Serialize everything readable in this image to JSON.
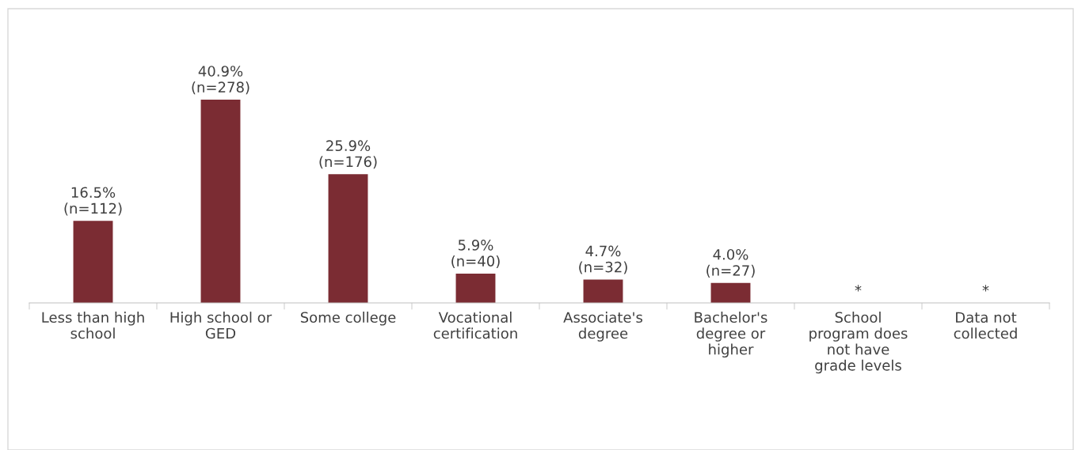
{
  "chart_data": {
    "type": "bar",
    "categories": [
      "Less than high\nschool",
      "High school or\nGED",
      "Some college",
      "Vocational\ncertification",
      "Associate's\ndegree",
      "Bachelor's\ndegree or\nhigher",
      "School\nprogram does\nnot have\ngrade levels",
      "Data not\ncollected"
    ],
    "values": [
      16.5,
      40.9,
      25.9,
      5.9,
      4.7,
      4.0,
      null,
      null
    ],
    "value_labels": [
      "16.5%\n(n=112)",
      "40.9%\n(n=278)",
      "25.9%\n(n=176)",
      "5.9%\n(n=40)",
      "4.7%\n(n=32)",
      "4.0%\n(n=27)",
      "*",
      "*"
    ],
    "color": "#7b2c33",
    "grid": false,
    "legend": false
  }
}
